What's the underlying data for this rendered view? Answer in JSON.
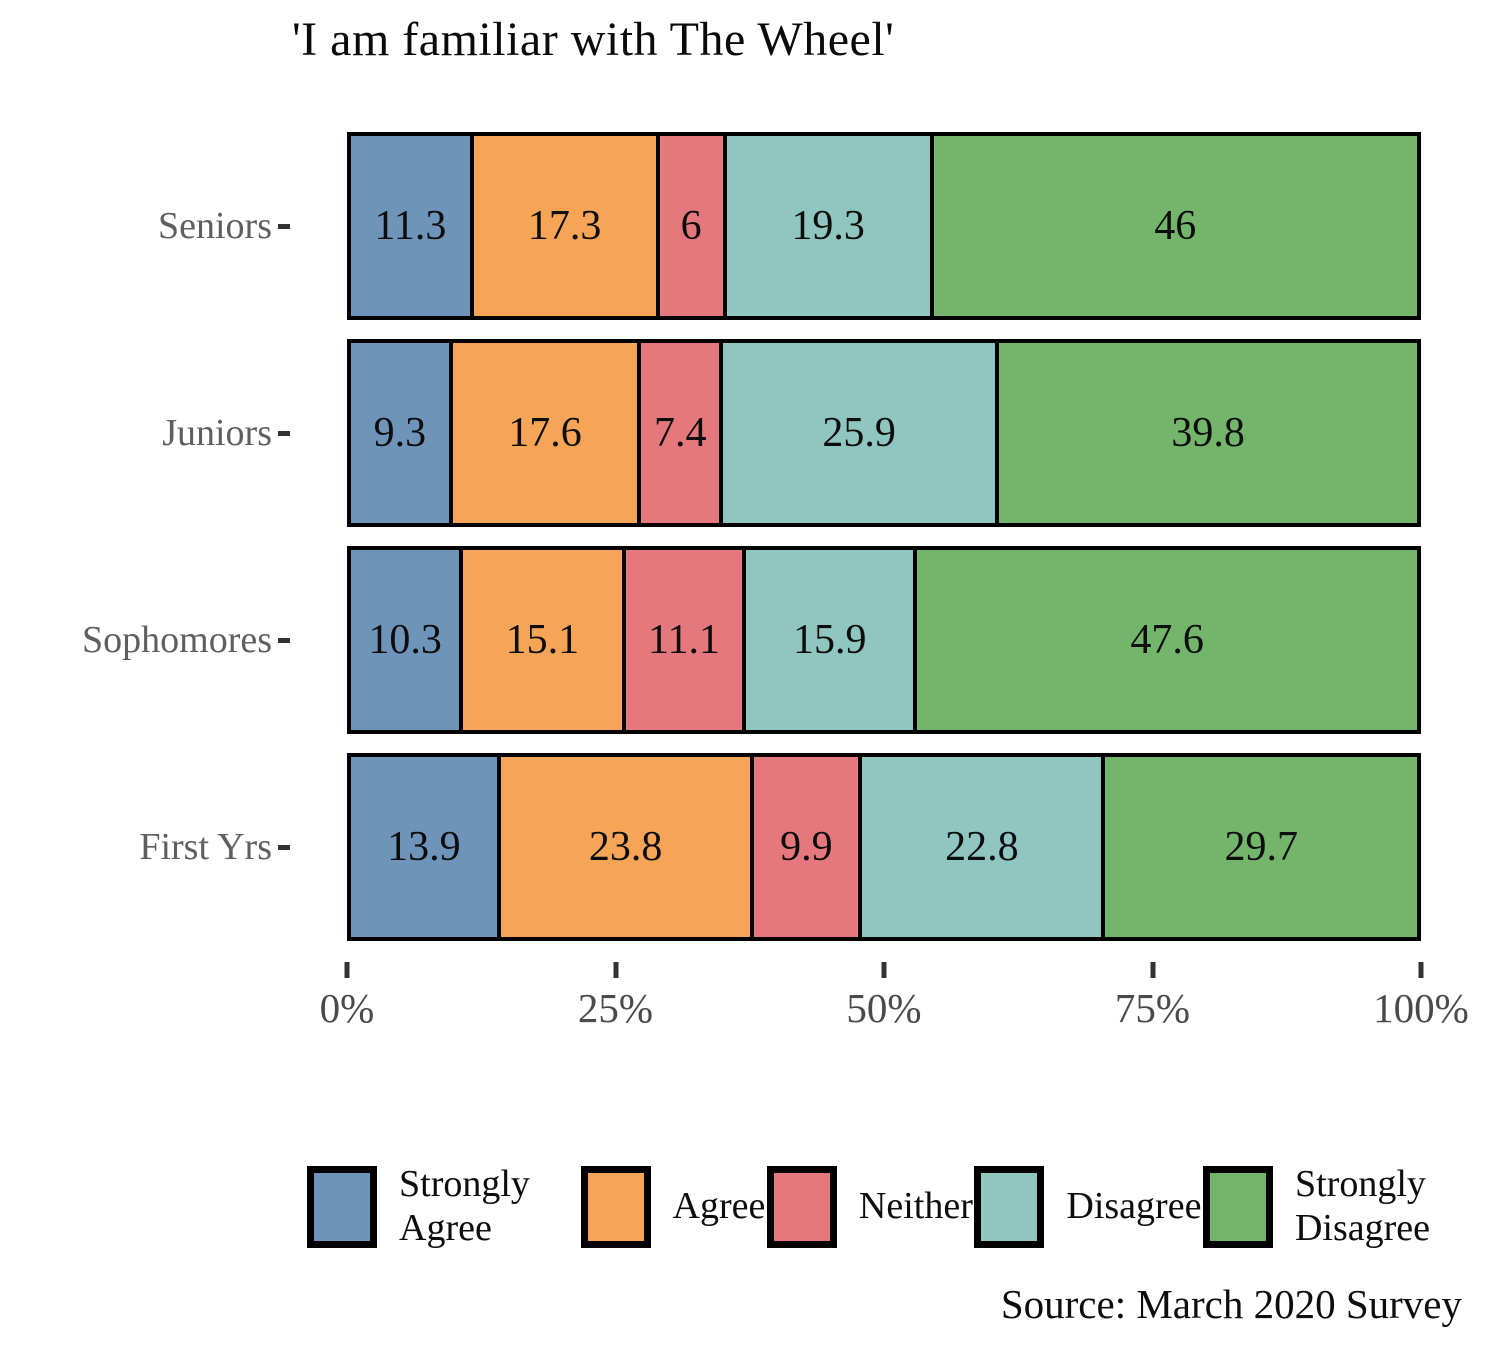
{
  "chart_data": {
    "type": "bar",
    "orientation": "horizontal",
    "stacked": true,
    "title": "'I am familiar with The Wheel'",
    "source": "Source: March 2020 Survey",
    "categories": [
      "Seniors",
      "Juniors",
      "Sophomores",
      "First Yrs"
    ],
    "series": [
      {
        "name": "Strongly Agree",
        "color": "#6f94ba",
        "values": [
          11.3,
          9.3,
          10.3,
          13.9
        ]
      },
      {
        "name": "Agree",
        "color": "#f6a556",
        "values": [
          17.3,
          17.6,
          15.1,
          23.8
        ]
      },
      {
        "name": "Neither",
        "color": "#e4787c",
        "values": [
          6,
          7.4,
          11.1,
          9.9
        ]
      },
      {
        "name": "Disagree",
        "color": "#8fc6c0",
        "values": [
          19.3,
          25.9,
          15.9,
          22.8
        ]
      },
      {
        "name": "Strongly Disagree",
        "color": "#73b56a",
        "values": [
          46,
          39.8,
          47.6,
          29.7
        ]
      }
    ],
    "x_axis": {
      "ticks": [
        "0%",
        "25%",
        "50%",
        "75%",
        "100%"
      ],
      "range": [
        0,
        100
      ],
      "grid": false
    },
    "legend_position": "bottom",
    "bar_border_color": "#000000",
    "value_label_color": "#0d0d0d",
    "axis_label_color": "#5f5f5f"
  }
}
